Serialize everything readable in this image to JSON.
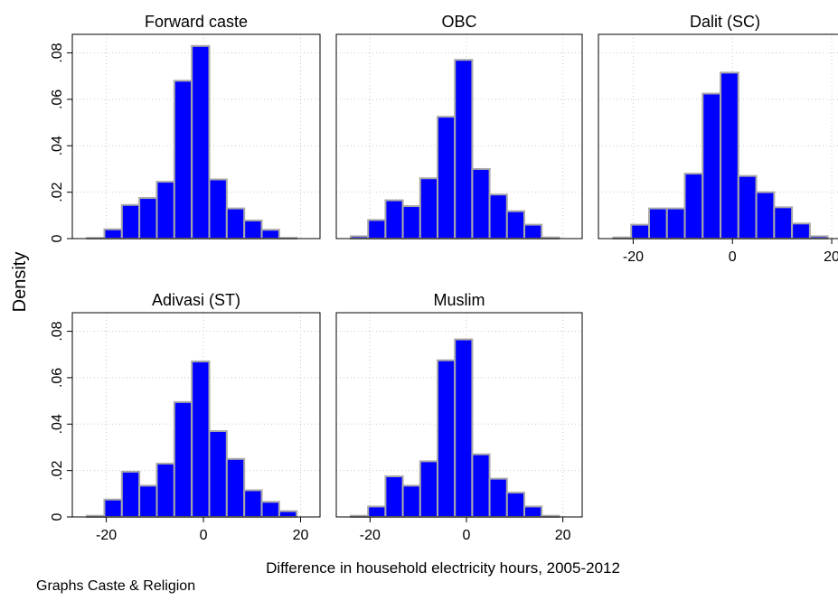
{
  "chart_data": {
    "type": "bar",
    "ylabel": "Density",
    "xlabel": "Difference in household electricity hours, 2005-2012",
    "note": "Graphs Caste & Religion",
    "x_ticks": [
      "-20",
      "0",
      "20"
    ],
    "y_ticks": [
      "0",
      ".02",
      ".04",
      ".06",
      ".08"
    ],
    "xlim": [
      -27,
      24
    ],
    "ylim": [
      0,
      0.088
    ],
    "bin_width": 3.6,
    "bin_starts": [
      -24,
      -20.4,
      -16.8,
      -13.2,
      -9.6,
      -6,
      -2.4,
      1.2,
      4.8,
      8.4,
      12,
      15.6,
      19.2
    ],
    "colors": {
      "bar_fill": "#0000ff",
      "bar_edge": "#a9a9a9",
      "grid": "#c8c8c8"
    },
    "panels": [
      {
        "title": "Forward caste",
        "values": [
          0.0003,
          0.004,
          0.0145,
          0.0175,
          0.0245,
          0.068,
          0.083,
          0.0255,
          0.013,
          0.0078,
          0.0038,
          0.0003,
          0
        ]
      },
      {
        "title": "OBC",
        "values": [
          0.001,
          0.008,
          0.0165,
          0.014,
          0.026,
          0.0525,
          0.077,
          0.03,
          0.019,
          0.0118,
          0.006,
          0.0005,
          0
        ]
      },
      {
        "title": "Dalit (SC)",
        "values": [
          0.0005,
          0.006,
          0.013,
          0.013,
          0.028,
          0.0625,
          0.0715,
          0.027,
          0.02,
          0.0135,
          0.0065,
          0.001,
          0
        ]
      },
      {
        "title": "Adivasi (ST)",
        "values": [
          0.0005,
          0.0075,
          0.0195,
          0.0135,
          0.023,
          0.0495,
          0.067,
          0.037,
          0.025,
          0.0115,
          0.0065,
          0.0025,
          0
        ]
      },
      {
        "title": "Muslim",
        "values": [
          0.0005,
          0.0045,
          0.0175,
          0.0135,
          0.024,
          0.0675,
          0.0765,
          0.027,
          0.0165,
          0.0105,
          0.0045,
          0.0005,
          0
        ]
      }
    ]
  }
}
